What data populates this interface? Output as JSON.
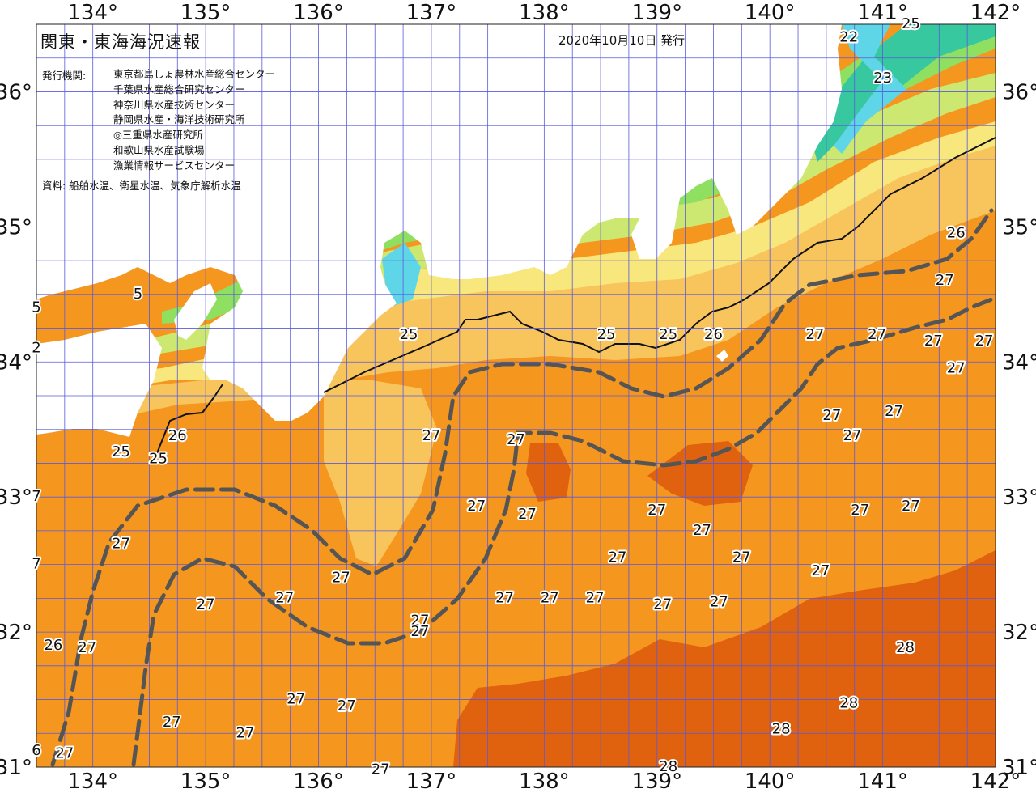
{
  "title": "関東・東海海況速報",
  "issue_date": "2020年10月10日 発行",
  "issuers": {
    "label": "発行機関:",
    "list": [
      "東京都島しょ農林水産総合センター",
      "千葉県水産総合研究センター",
      "神奈川県水産技術センター",
      "静岡県水産・海洋技術研究所",
      "◎三重県水産研究所",
      "和歌山県水産試験場",
      "漁業情報サービスセンター"
    ]
  },
  "source": "資料: 船舶水温、衛星水温、気象庁解析水温",
  "axes": {
    "lon_labels": [
      "134°",
      "135°",
      "136°",
      "137°",
      "138°",
      "139°",
      "140°",
      "141°",
      "142°"
    ],
    "lat_labels": [
      "36°",
      "35°",
      "34°",
      "33°",
      "32°",
      "31°"
    ],
    "lon_range": [
      133.5,
      142.0
    ],
    "lat_range": [
      31.0,
      36.5
    ]
  },
  "colors": {
    "t28": "#e0620e",
    "t27": "#f5961f",
    "t26": "#f8c45c",
    "t25": "#f7e77c",
    "t24": "#cde870",
    "t23": "#8fe060",
    "t22": "#37c8a0",
    "t21": "#5fd6e8",
    "land": "#ffffff",
    "grid": "#4a4ad8",
    "kuroshio_path": "#555555"
  },
  "temperature_labels": [
    {
      "text": "25",
      "lon": 141.25,
      "lat": 36.5
    },
    {
      "text": "22",
      "lon": 140.7,
      "lat": 36.4
    },
    {
      "text": "23",
      "lon": 141.0,
      "lat": 36.1
    },
    {
      "text": "5",
      "lon": 134.4,
      "lat": 34.5
    },
    {
      "text": "5",
      "lon": 133.5,
      "lat": 34.4
    },
    {
      "text": "2",
      "lon": 133.5,
      "lat": 34.1
    },
    {
      "text": "25",
      "lon": 136.8,
      "lat": 34.2
    },
    {
      "text": "25",
      "lon": 138.55,
      "lat": 34.2
    },
    {
      "text": "25",
      "lon": 139.1,
      "lat": 34.2
    },
    {
      "text": "26",
      "lon": 139.5,
      "lat": 34.2
    },
    {
      "text": "26",
      "lon": 141.65,
      "lat": 34.95
    },
    {
      "text": "27",
      "lon": 141.55,
      "lat": 34.6
    },
    {
      "text": "27",
      "lon": 140.4,
      "lat": 34.2
    },
    {
      "text": "27",
      "lon": 140.95,
      "lat": 34.2
    },
    {
      "text": "27",
      "lon": 141.45,
      "lat": 34.15
    },
    {
      "text": "27",
      "lon": 141.9,
      "lat": 34.15
    },
    {
      "text": "27",
      "lon": 141.65,
      "lat": 33.95
    },
    {
      "text": "27",
      "lon": 140.55,
      "lat": 33.6
    },
    {
      "text": "27",
      "lon": 140.73,
      "lat": 33.45
    },
    {
      "text": "27",
      "lon": 141.1,
      "lat": 33.63
    },
    {
      "text": "27",
      "lon": 137.0,
      "lat": 33.45
    },
    {
      "text": "27",
      "lon": 137.75,
      "lat": 33.42
    },
    {
      "text": "26",
      "lon": 134.75,
      "lat": 33.45
    },
    {
      "text": "25",
      "lon": 134.25,
      "lat": 33.33
    },
    {
      "text": "25",
      "lon": 134.58,
      "lat": 33.28
    },
    {
      "text": "7",
      "lon": 133.5,
      "lat": 33.0
    },
    {
      "text": "27",
      "lon": 137.4,
      "lat": 32.93
    },
    {
      "text": "27",
      "lon": 137.85,
      "lat": 32.87
    },
    {
      "text": "27",
      "lon": 139.0,
      "lat": 32.9
    },
    {
      "text": "27",
      "lon": 139.4,
      "lat": 32.75
    },
    {
      "text": "27",
      "lon": 140.8,
      "lat": 32.9
    },
    {
      "text": "27",
      "lon": 141.25,
      "lat": 32.93
    },
    {
      "text": "27",
      "lon": 134.25,
      "lat": 32.65
    },
    {
      "text": "27",
      "lon": 139.75,
      "lat": 32.55
    },
    {
      "text": "27",
      "lon": 140.45,
      "lat": 32.45
    },
    {
      "text": "27",
      "lon": 138.65,
      "lat": 32.55
    },
    {
      "text": "7",
      "lon": 133.5,
      "lat": 32.5
    },
    {
      "text": "27",
      "lon": 136.2,
      "lat": 32.4
    },
    {
      "text": "27",
      "lon": 135.7,
      "lat": 32.25
    },
    {
      "text": "27",
      "lon": 135.0,
      "lat": 32.2
    },
    {
      "text": "27",
      "lon": 137.65,
      "lat": 32.25
    },
    {
      "text": "27",
      "lon": 138.05,
      "lat": 32.25
    },
    {
      "text": "27",
      "lon": 138.45,
      "lat": 32.25
    },
    {
      "text": "27",
      "lon": 139.05,
      "lat": 32.2
    },
    {
      "text": "27",
      "lon": 139.55,
      "lat": 32.22
    },
    {
      "text": "27",
      "lon": 136.9,
      "lat": 32.08
    },
    {
      "text": "27",
      "lon": 136.9,
      "lat": 32.0
    },
    {
      "text": "26",
      "lon": 133.65,
      "lat": 31.9
    },
    {
      "text": "27",
      "lon": 133.95,
      "lat": 31.88
    },
    {
      "text": "28",
      "lon": 141.2,
      "lat": 31.88
    },
    {
      "text": "27",
      "lon": 135.8,
      "lat": 31.5
    },
    {
      "text": "27",
      "lon": 136.25,
      "lat": 31.45
    },
    {
      "text": "28",
      "lon": 140.7,
      "lat": 31.47
    },
    {
      "text": "27",
      "lon": 134.7,
      "lat": 31.33
    },
    {
      "text": "27",
      "lon": 135.35,
      "lat": 31.25
    },
    {
      "text": "28",
      "lon": 140.1,
      "lat": 31.28
    },
    {
      "text": "27",
      "lon": 133.75,
      "lat": 31.1
    },
    {
      "text": "6",
      "lon": 133.5,
      "lat": 31.12
    },
    {
      "text": "27",
      "lon": 136.55,
      "lat": 30.98
    },
    {
      "text": "28",
      "lon": 139.1,
      "lat": 31.0
    }
  ]
}
